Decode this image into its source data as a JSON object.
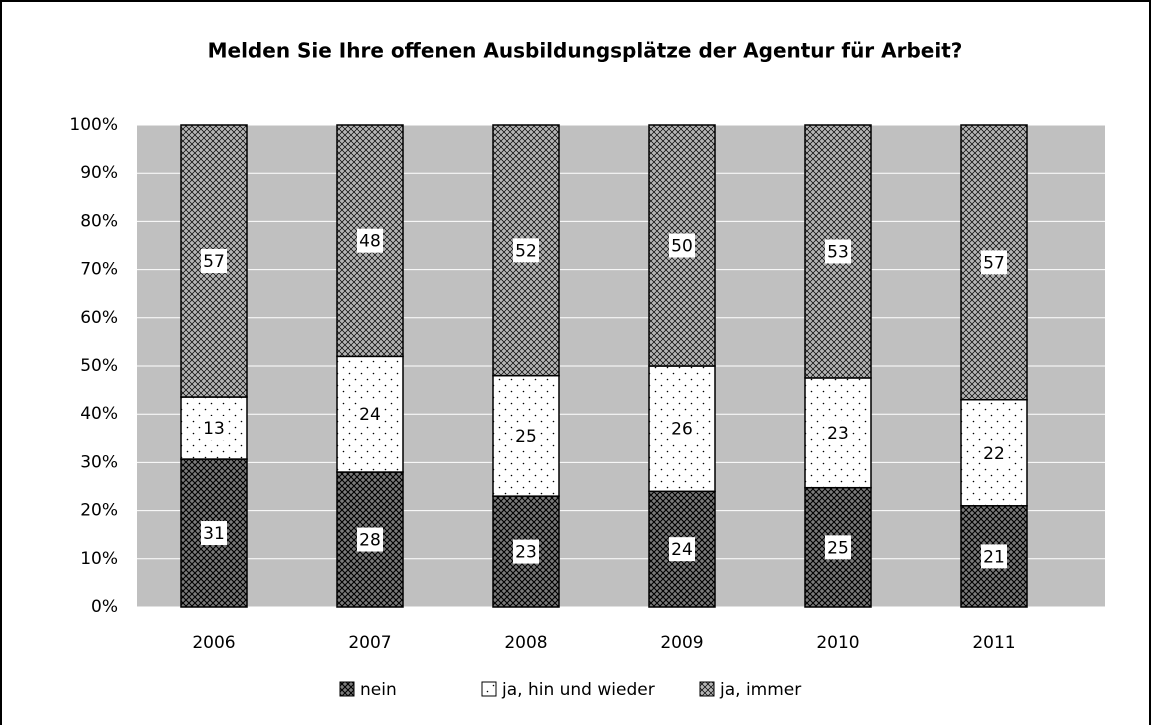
{
  "chart_data": {
    "type": "bar",
    "stacking": "percent",
    "title": "Melden Sie Ihre offenen Ausbildungsplätze der Agentur für Arbeit?",
    "categories": [
      "2006",
      "2007",
      "2008",
      "2009",
      "2010",
      "2011"
    ],
    "series": [
      {
        "name": "nein",
        "color": "#7a7a7a",
        "values": [
          31,
          28,
          23,
          24,
          25,
          21
        ]
      },
      {
        "name": "ja, hin und wieder",
        "color": "#ffffff",
        "values": [
          13,
          24,
          25,
          26,
          23,
          22
        ]
      },
      {
        "name": "ja, immer",
        "color": "#b4b4b4",
        "values": [
          57,
          48,
          52,
          50,
          53,
          57
        ]
      }
    ],
    "ylim": [
      0,
      100
    ],
    "yticks": [
      {
        "value": 0,
        "label": "0%"
      },
      {
        "value": 10,
        "label": "10%"
      },
      {
        "value": 20,
        "label": "20%"
      },
      {
        "value": 30,
        "label": "30%"
      },
      {
        "value": 40,
        "label": "40%"
      },
      {
        "value": 50,
        "label": "50%"
      },
      {
        "value": 60,
        "label": "60%"
      },
      {
        "value": 70,
        "label": "70%"
      },
      {
        "value": 80,
        "label": "80%"
      },
      {
        "value": 90,
        "label": "90%"
      },
      {
        "value": 100,
        "label": "100%"
      }
    ],
    "grid": true,
    "legend": "bottom"
  }
}
